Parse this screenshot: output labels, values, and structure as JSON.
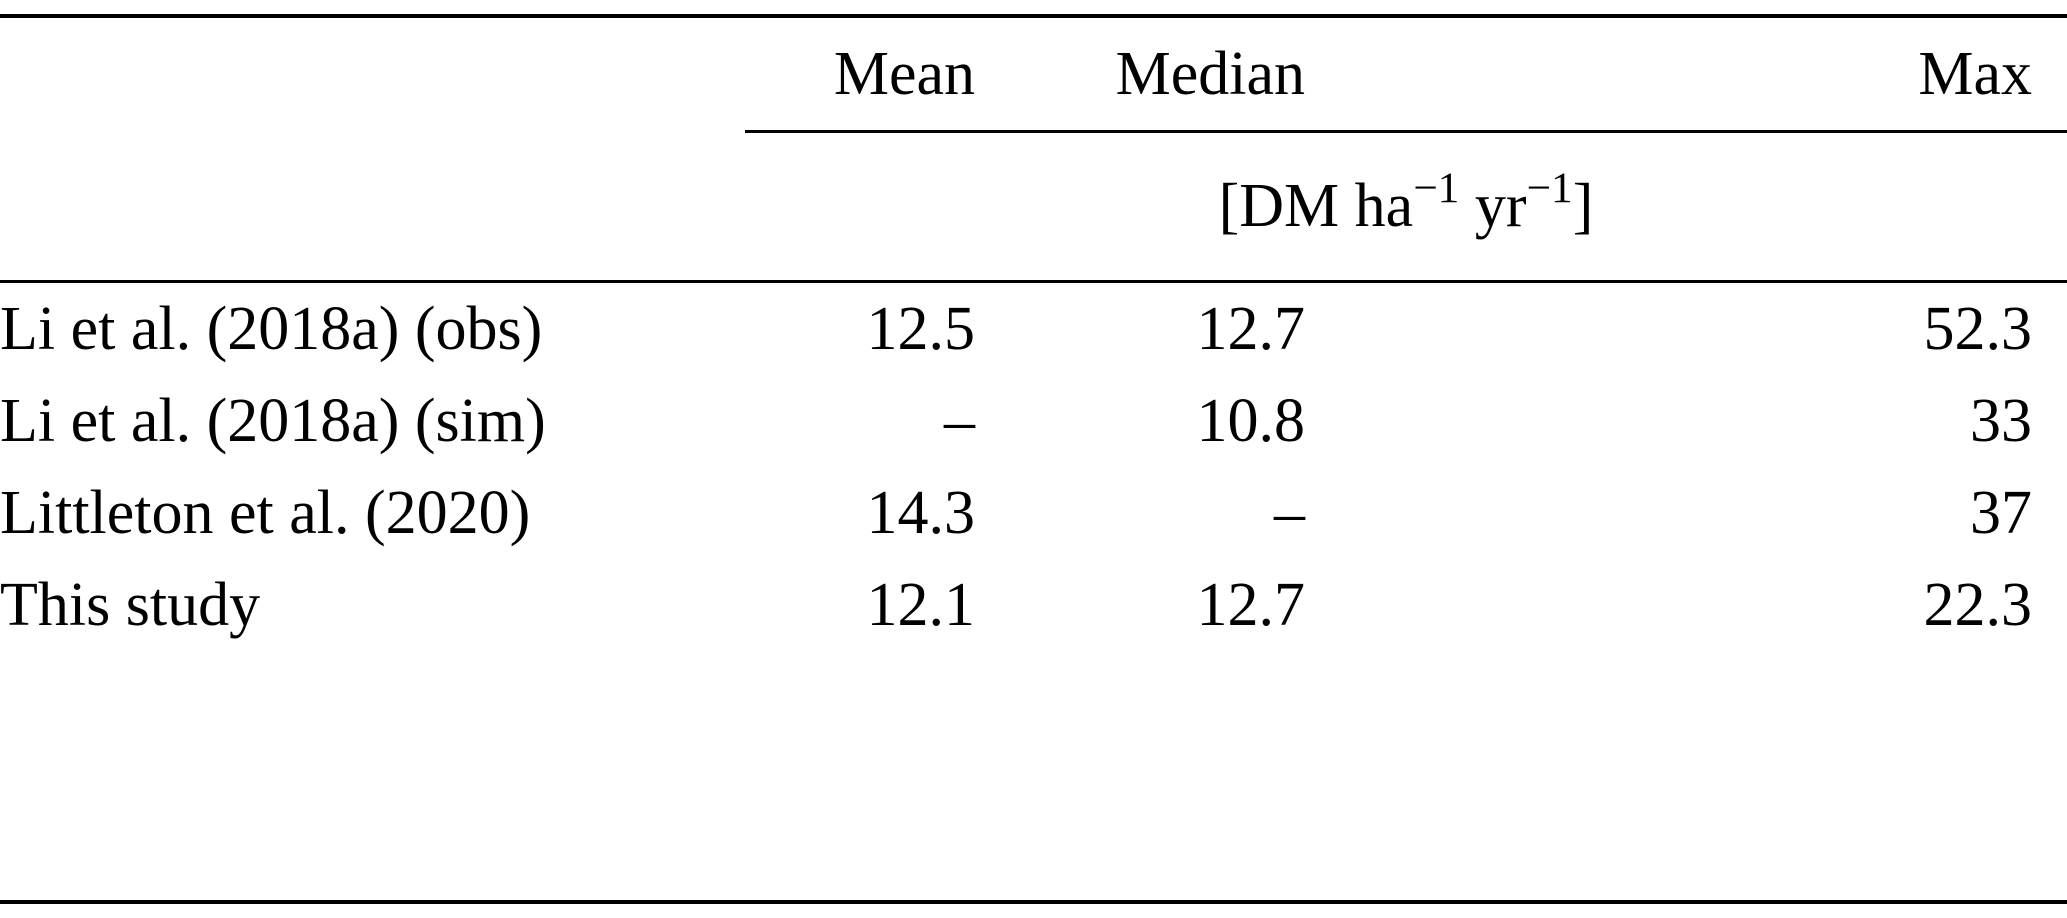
{
  "table": {
    "columns": {
      "mean": "Mean",
      "median": "Median",
      "max": "Max"
    },
    "unit": {
      "prefix": "[DM ha",
      "sup1": "−1",
      "mid": " yr",
      "sup2": "−1",
      "suffix": "]"
    },
    "rows": [
      {
        "label": "Li et al. (2018a) (obs)",
        "mean": "12.5",
        "median": "12.7",
        "max": "52.3"
      },
      {
        "label": "Li et al. (2018a) (sim)",
        "mean": "–",
        "median": "10.8",
        "max": "33"
      },
      {
        "label": "Littleton et al. (2020)",
        "mean": "14.3",
        "median": "–",
        "max": "37"
      },
      {
        "label": "This study",
        "mean": "12.1",
        "median": "12.7",
        "max": "22.3"
      }
    ]
  }
}
